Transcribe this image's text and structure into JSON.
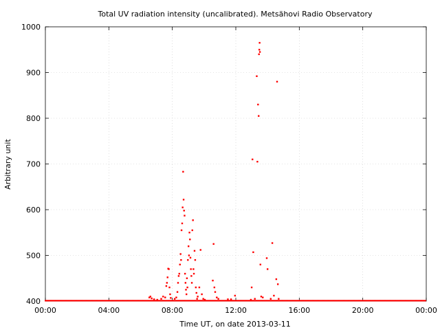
{
  "chart_data": {
    "type": "scatter",
    "title": "Total UV radiation intensity (uncalibrated). Metsähovi Radio Observatory",
    "xlabel": "Time UT, on date 2013-03-11",
    "ylabel": "Arbitrary unit",
    "xlim_hours": [
      0,
      24
    ],
    "ylim": [
      400,
      1000
    ],
    "x_ticks": [
      "00:00",
      "04:00",
      "08:00",
      "12:00",
      "16:00",
      "20:00",
      "00:00"
    ],
    "y_ticks": [
      400,
      500,
      600,
      700,
      800,
      900,
      1000
    ],
    "grid": true,
    "point_color": "#ff0000",
    "baseline_value": 401,
    "points": [
      [
        6.55,
        408
      ],
      [
        6.62,
        410
      ],
      [
        6.7,
        406
      ],
      [
        6.85,
        404
      ],
      [
        7.05,
        403
      ],
      [
        7.3,
        405
      ],
      [
        7.42,
        410
      ],
      [
        7.55,
        408
      ],
      [
        7.62,
        433
      ],
      [
        7.66,
        440
      ],
      [
        7.7,
        452
      ],
      [
        7.74,
        471
      ],
      [
        7.78,
        470
      ],
      [
        7.82,
        430
      ],
      [
        7.86,
        415
      ],
      [
        7.9,
        407
      ],
      [
        8.15,
        405
      ],
      [
        8.25,
        408
      ],
      [
        8.32,
        420
      ],
      [
        8.36,
        440
      ],
      [
        8.4,
        455
      ],
      [
        8.44,
        460
      ],
      [
        8.48,
        480
      ],
      [
        8.52,
        503
      ],
      [
        8.55,
        490
      ],
      [
        8.58,
        555
      ],
      [
        8.62,
        570
      ],
      [
        8.65,
        605
      ],
      [
        8.68,
        683
      ],
      [
        8.71,
        622
      ],
      [
        8.74,
        598
      ],
      [
        8.77,
        587
      ],
      [
        8.8,
        460
      ],
      [
        8.83,
        440
      ],
      [
        8.86,
        425
      ],
      [
        8.89,
        415
      ],
      [
        8.92,
        450
      ],
      [
        8.95,
        430
      ],
      [
        8.98,
        490
      ],
      [
        9.02,
        520
      ],
      [
        9.05,
        500
      ],
      [
        9.08,
        550
      ],
      [
        9.11,
        535
      ],
      [
        9.14,
        495
      ],
      [
        9.17,
        470
      ],
      [
        9.2,
        455
      ],
      [
        9.23,
        440
      ],
      [
        9.26,
        555
      ],
      [
        9.3,
        577
      ],
      [
        9.33,
        470
      ],
      [
        9.36,
        460
      ],
      [
        9.4,
        510
      ],
      [
        9.44,
        490
      ],
      [
        9.48,
        430
      ],
      [
        9.52,
        418
      ],
      [
        9.56,
        405
      ],
      [
        9.6,
        410
      ],
      [
        9.7,
        430
      ],
      [
        9.78,
        512
      ],
      [
        9.86,
        415
      ],
      [
        9.95,
        405
      ],
      [
        10.05,
        403
      ],
      [
        10.55,
        445
      ],
      [
        10.6,
        525
      ],
      [
        10.65,
        430
      ],
      [
        10.7,
        420
      ],
      [
        10.8,
        408
      ],
      [
        10.9,
        405
      ],
      [
        11.5,
        404
      ],
      [
        11.7,
        404
      ],
      [
        11.95,
        412
      ],
      [
        12.95,
        403
      ],
      [
        13.0,
        430
      ],
      [
        13.05,
        710
      ],
      [
        13.1,
        507
      ],
      [
        13.2,
        405
      ],
      [
        13.32,
        892
      ],
      [
        13.36,
        705
      ],
      [
        13.4,
        830
      ],
      [
        13.44,
        805
      ],
      [
        13.46,
        940
      ],
      [
        13.48,
        950
      ],
      [
        13.5,
        965
      ],
      [
        13.52,
        945
      ],
      [
        13.55,
        480
      ],
      [
        13.6,
        410
      ],
      [
        13.7,
        408
      ],
      [
        13.95,
        494
      ],
      [
        14.0,
        470
      ],
      [
        14.2,
        405
      ],
      [
        14.3,
        527
      ],
      [
        14.4,
        412
      ],
      [
        14.55,
        448
      ],
      [
        14.6,
        880
      ],
      [
        14.65,
        437
      ],
      [
        14.7,
        405
      ]
    ]
  }
}
